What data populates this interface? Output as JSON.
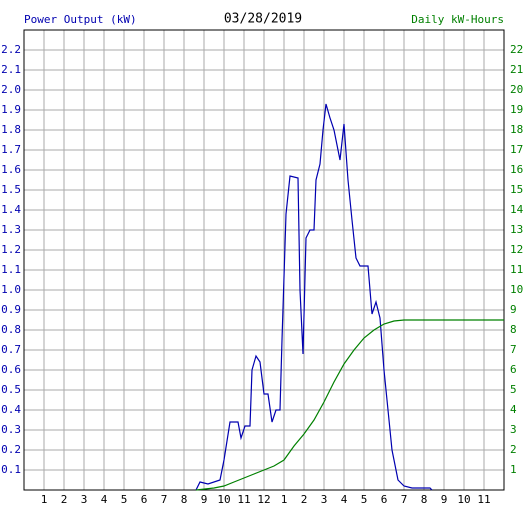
{
  "chart_data": {
    "type": "line",
    "title": "03/28/2019",
    "y_label": "Power Output (kW)",
    "y2_label": "Daily kW-Hours",
    "xlim": [
      0,
      24
    ],
    "xticks": [
      1,
      2,
      3,
      4,
      5,
      6,
      7,
      8,
      9,
      10,
      11,
      12,
      {
        "value": 13,
        "label": "1"
      },
      {
        "value": 14,
        "label": "2"
      },
      {
        "value": 15,
        "label": "3"
      },
      {
        "value": 16,
        "label": "4"
      },
      {
        "value": 17,
        "label": "5"
      },
      {
        "value": 18,
        "label": "6"
      },
      {
        "value": 19,
        "label": "7"
      },
      {
        "value": 20,
        "label": "8"
      },
      {
        "value": 21,
        "label": "9"
      },
      {
        "value": 22,
        "label": "10"
      },
      {
        "value": 23,
        "label": "11"
      }
    ],
    "ylim": [
      0,
      2.3
    ],
    "yticks": [
      0.1,
      0.2,
      0.3,
      0.4,
      0.5,
      0.6,
      0.7,
      0.8,
      0.9,
      {
        "value": 1,
        "label": "1.0"
      },
      1.1,
      1.2,
      1.3,
      1.4,
      1.5,
      1.6,
      1.7,
      1.8,
      1.9,
      {
        "value": 2,
        "label": "2.0"
      },
      2.1,
      2.2
    ],
    "y2lim": [
      0,
      23
    ],
    "y2ticks": [
      1,
      2,
      3,
      4,
      5,
      6,
      7,
      8,
      9,
      10,
      11,
      12,
      13,
      14,
      15,
      16,
      17,
      18,
      19,
      20,
      21,
      22
    ],
    "grid": true,
    "series": [
      {
        "name": "Power Output (kW)",
        "color": "#0000b0",
        "x": [
          8.6,
          8.8,
          9.2,
          9.8,
          10.0,
          10.3,
          10.7,
          10.85,
          11.05,
          11.3,
          11.4,
          11.6,
          11.8,
          12.0,
          12.2,
          12.4,
          12.6,
          12.8,
          12.9,
          13.1,
          13.3,
          13.7,
          13.8,
          13.95,
          14.1,
          14.3,
          14.5,
          14.6,
          14.8,
          14.95,
          15.1,
          15.3,
          15.5,
          15.8,
          16.0,
          16.2,
          16.4,
          16.6,
          16.8,
          17.0,
          17.2,
          17.4,
          17.6,
          17.8,
          18.0,
          18.2,
          18.4,
          18.7,
          19.0,
          19.4,
          20.3,
          20.4
        ],
        "values": [
          0,
          0.04,
          0.03,
          0.05,
          0.15,
          0.34,
          0.34,
          0.26,
          0.32,
          0.32,
          0.6,
          0.67,
          0.64,
          0.48,
          0.48,
          0.34,
          0.4,
          0.4,
          0.75,
          1.38,
          1.57,
          1.56,
          1.0,
          0.68,
          1.26,
          1.3,
          1.3,
          1.55,
          1.63,
          1.8,
          1.93,
          1.86,
          1.8,
          1.65,
          1.83,
          1.55,
          1.35,
          1.16,
          1.12,
          1.12,
          1.12,
          0.88,
          0.94,
          0.86,
          0.6,
          0.4,
          0.2,
          0.05,
          0.02,
          0.01,
          0.01,
          0
        ]
      },
      {
        "name": "Daily kW-Hours",
        "color": "#008000",
        "axis": "y2",
        "x": [
          8.6,
          9.5,
          10,
          10.5,
          11,
          11.5,
          12,
          12.5,
          13,
          13.5,
          14,
          14.5,
          15,
          15.5,
          16,
          16.5,
          17,
          17.5,
          18,
          18.5,
          19,
          24
        ],
        "values": [
          0,
          0.1,
          0.2,
          0.4,
          0.6,
          0.8,
          1.0,
          1.2,
          1.5,
          2.2,
          2.8,
          3.5,
          4.4,
          5.4,
          6.3,
          7.0,
          7.6,
          8.0,
          8.3,
          8.45,
          8.5,
          8.5
        ]
      }
    ]
  }
}
